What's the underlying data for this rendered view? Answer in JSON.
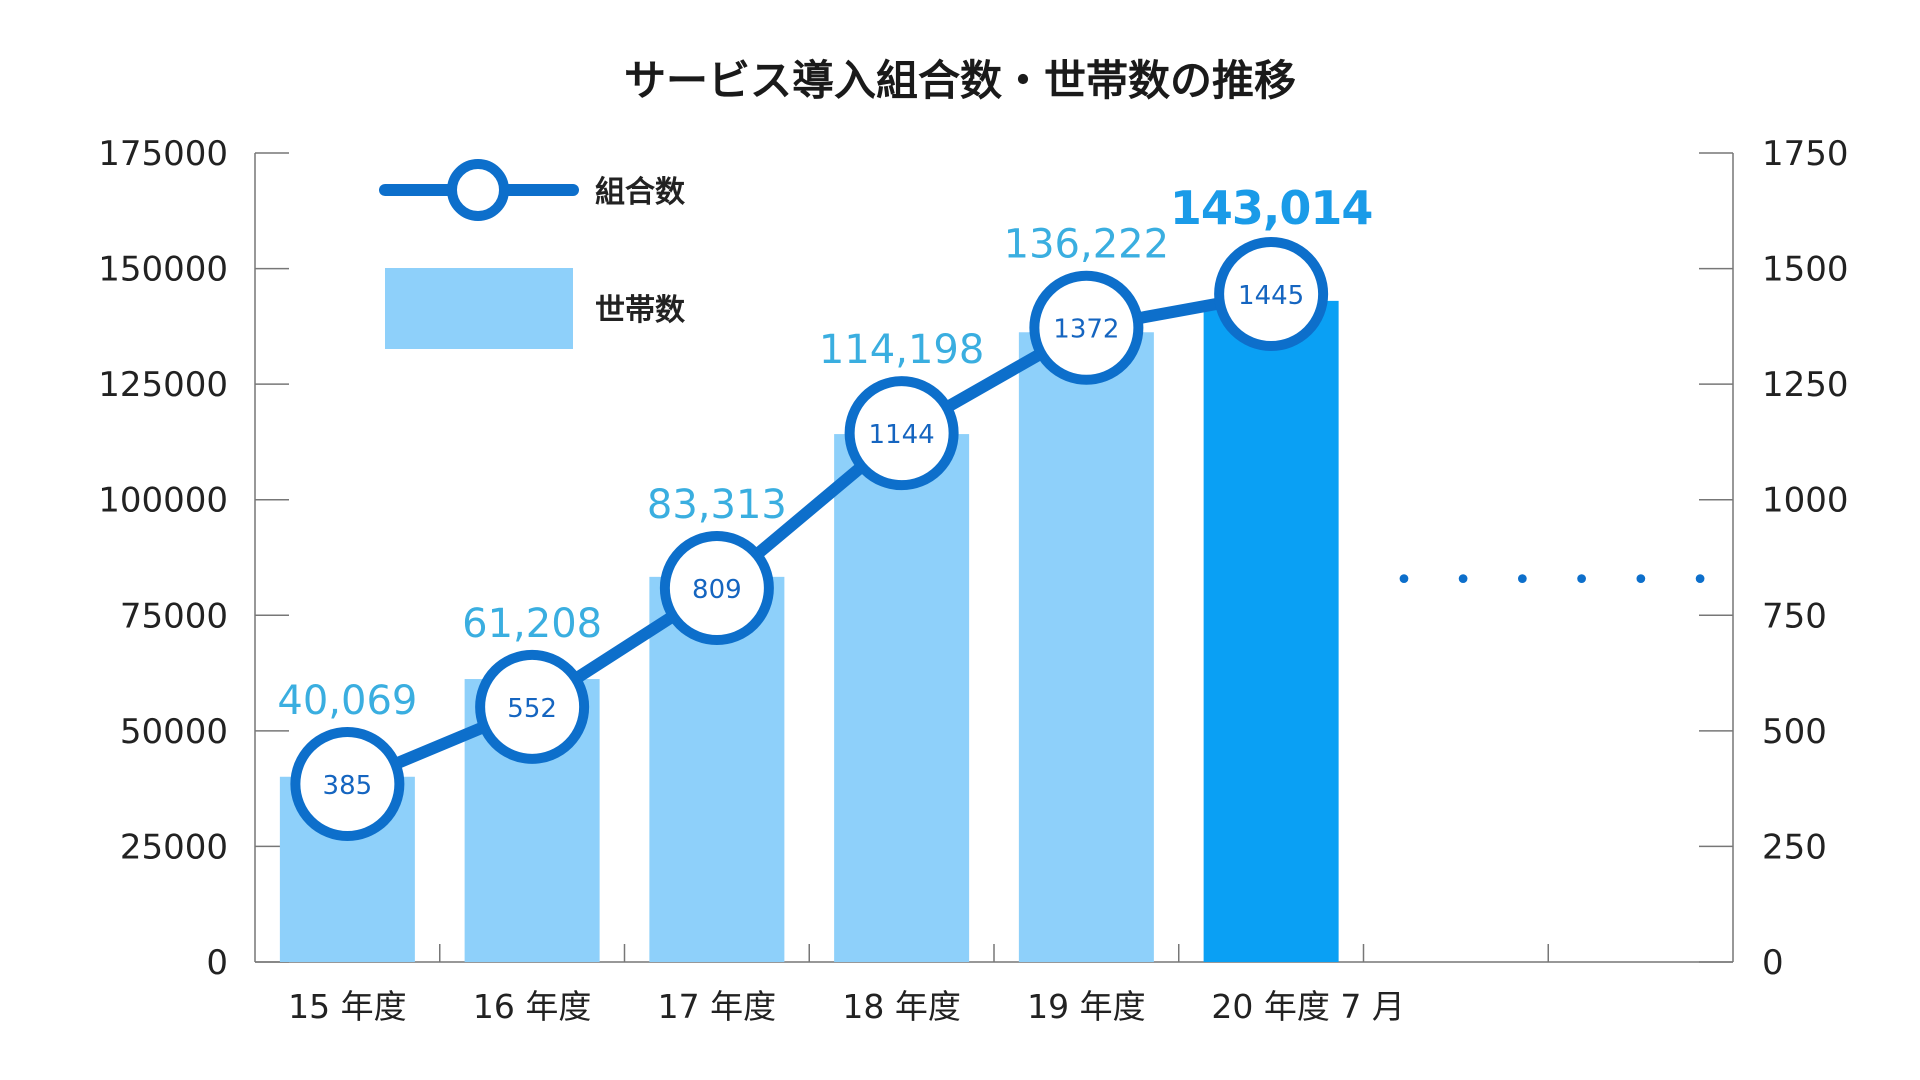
{
  "chart_data": {
    "type": "bar",
    "title": "サービス導入組合数・世帯数の推移",
    "categories": [
      "15 年度",
      "16 年度",
      "17 年度",
      "18 年度",
      "19 年度",
      "20 年度 7 月"
    ],
    "y_left": {
      "range": [
        0,
        175000
      ],
      "ticks": [
        "0",
        "25000",
        "50000",
        "75000",
        "100000",
        "125000",
        "150000",
        "175000"
      ]
    },
    "y_right": {
      "range": [
        0,
        1750
      ],
      "ticks": [
        "0",
        "250",
        "500",
        "750",
        "1000",
        "1250",
        "1500",
        "1750"
      ]
    },
    "series": [
      {
        "name": "世帯数",
        "type": "bar",
        "axis": "left",
        "values": [
          40069,
          61208,
          83313,
          114198,
          136222,
          143014
        ],
        "labels": [
          "40,069",
          "61,208",
          "83,313",
          "114,198",
          "136,222",
          "143,014"
        ]
      },
      {
        "name": "組合数",
        "type": "line",
        "axis": "right",
        "values": [
          385,
          552,
          809,
          1144,
          1372,
          1445
        ],
        "labels": [
          "385",
          "552",
          "809",
          "1144",
          "1372",
          "1445"
        ]
      }
    ],
    "legend": [
      {
        "name": "組合数",
        "kind": "line"
      },
      {
        "name": "世帯数",
        "kind": "bar"
      }
    ],
    "highlight_index": 5,
    "colors": {
      "bar": "#8ed0fa",
      "bar_highlight": "#0aa0f4",
      "line": "#0d6fcb",
      "label": "#3aaee0",
      "axis": "#777777"
    },
    "continuation_marker": "• • • • • •"
  }
}
